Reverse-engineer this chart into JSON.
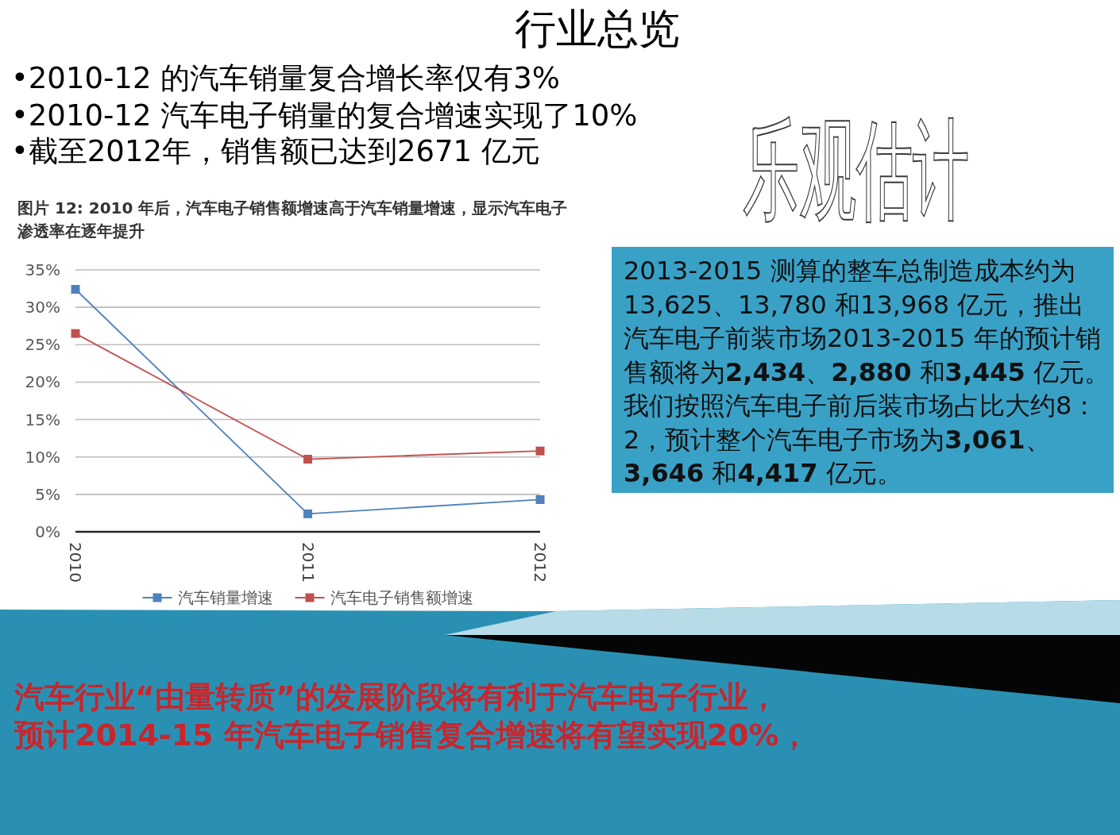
{
  "chart_data": {
    "type": "line",
    "title": "行业总览",
    "subtitle": "图片 12: 2010 年后，汽车电子销售额增速高于汽车销量增速，显示汽车电子渗透率在逐年提升",
    "categories": [
      "2010",
      "2011",
      "2012"
    ],
    "series": [
      {
        "name": "汽车销量增速",
        "color": "#4f81bd",
        "values": [
          32.4,
          2.4,
          4.3
        ]
      },
      {
        "name": "汽车电子销售额增速",
        "color": "#c0504d",
        "values": [
          26.5,
          9.7,
          10.8
        ]
      }
    ],
    "ylim": [
      0,
      35
    ],
    "yticks": [
      {
        "value": 0,
        "label": "0%"
      },
      {
        "value": 5,
        "label": "5%"
      },
      {
        "value": 10,
        "label": "10%"
      },
      {
        "value": 15,
        "label": "15%"
      },
      {
        "value": 20,
        "label": "20%"
      },
      {
        "value": 25,
        "label": "25%"
      },
      {
        "value": 30,
        "label": "30%"
      },
      {
        "value": 35,
        "label": "35%"
      }
    ],
    "grid": "y",
    "legend": "bottom",
    "marker": "square",
    "line_style": "solid",
    "annotations": [
      "•2010-12 的汽车销量复合增长率仅有3%",
      "•2010-12 汽车电子销量的复合增速实现了10%",
      "•截至2012年，销售额已达到2671 亿元",
      "乐观估计",
      "2013-2015 测算的整车总制造成本约为13,625、13,780 和13,968 亿元，推出汽车电子前装市场2013-2015 年的预计销售额将为**2,434**、**2,880** 和**3,445** 亿元。我们按照汽车电子前后装市场占比大约8：2，预计整个汽车电子市场为**3,061**、**3,646** 和**4,417** 亿元。",
      "汽车行业“由量转质”的发展阶段将有利于汽车电子行业，",
      "预计2014-15 年汽车电子销售复合增速将有望实现20%，"
    ]
  }
}
